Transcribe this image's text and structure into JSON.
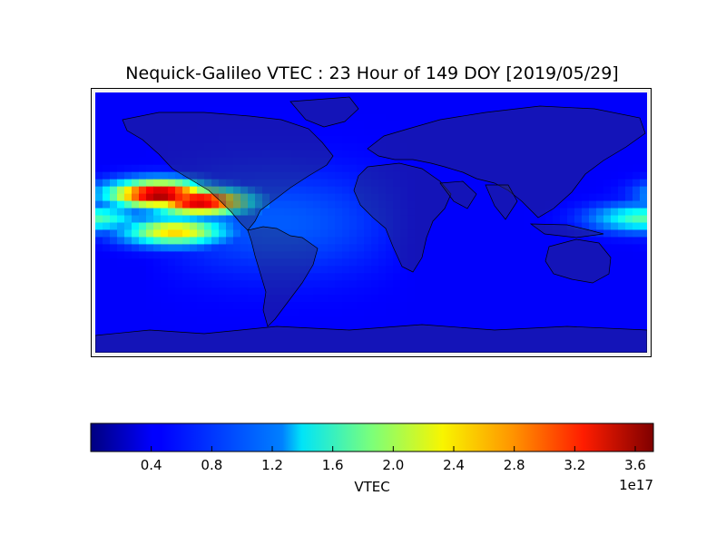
{
  "chart_data": {
    "type": "heatmap",
    "title": "Nequick-Galileo VTEC : 23 Hour of 149 DOY [2019/05/29]",
    "colorbar": {
      "label": "VTEC",
      "exponent_label": "1e17",
      "colormap": "jet",
      "vmin": 0.0,
      "vmax": 3.72,
      "ticks": [
        "0.4",
        "0.8",
        "1.2",
        "1.6",
        "2.0",
        "2.4",
        "2.8",
        "3.2",
        "3.6"
      ],
      "tick_values": [
        0.4,
        0.8,
        1.2,
        1.6,
        2.0,
        2.4,
        2.8,
        3.2,
        3.6
      ]
    },
    "grid": {
      "lon_range": [
        -180,
        180
      ],
      "lat_range": [
        -87.5,
        87.5
      ],
      "background_value": 0.45,
      "peaks": [
        {
          "lon": -138,
          "lat": 19,
          "value": 3.7
        },
        {
          "lon": -112,
          "lat": 14,
          "value": 3.5
        },
        {
          "lon": -128,
          "lat": -6,
          "value": 2.5
        },
        {
          "lon": 178,
          "lat": 3,
          "value": 1.7
        }
      ]
    },
    "colors": {
      "frame": "#000000",
      "land_overlay": "#3a3a6e",
      "coastline": "#000000"
    }
  }
}
